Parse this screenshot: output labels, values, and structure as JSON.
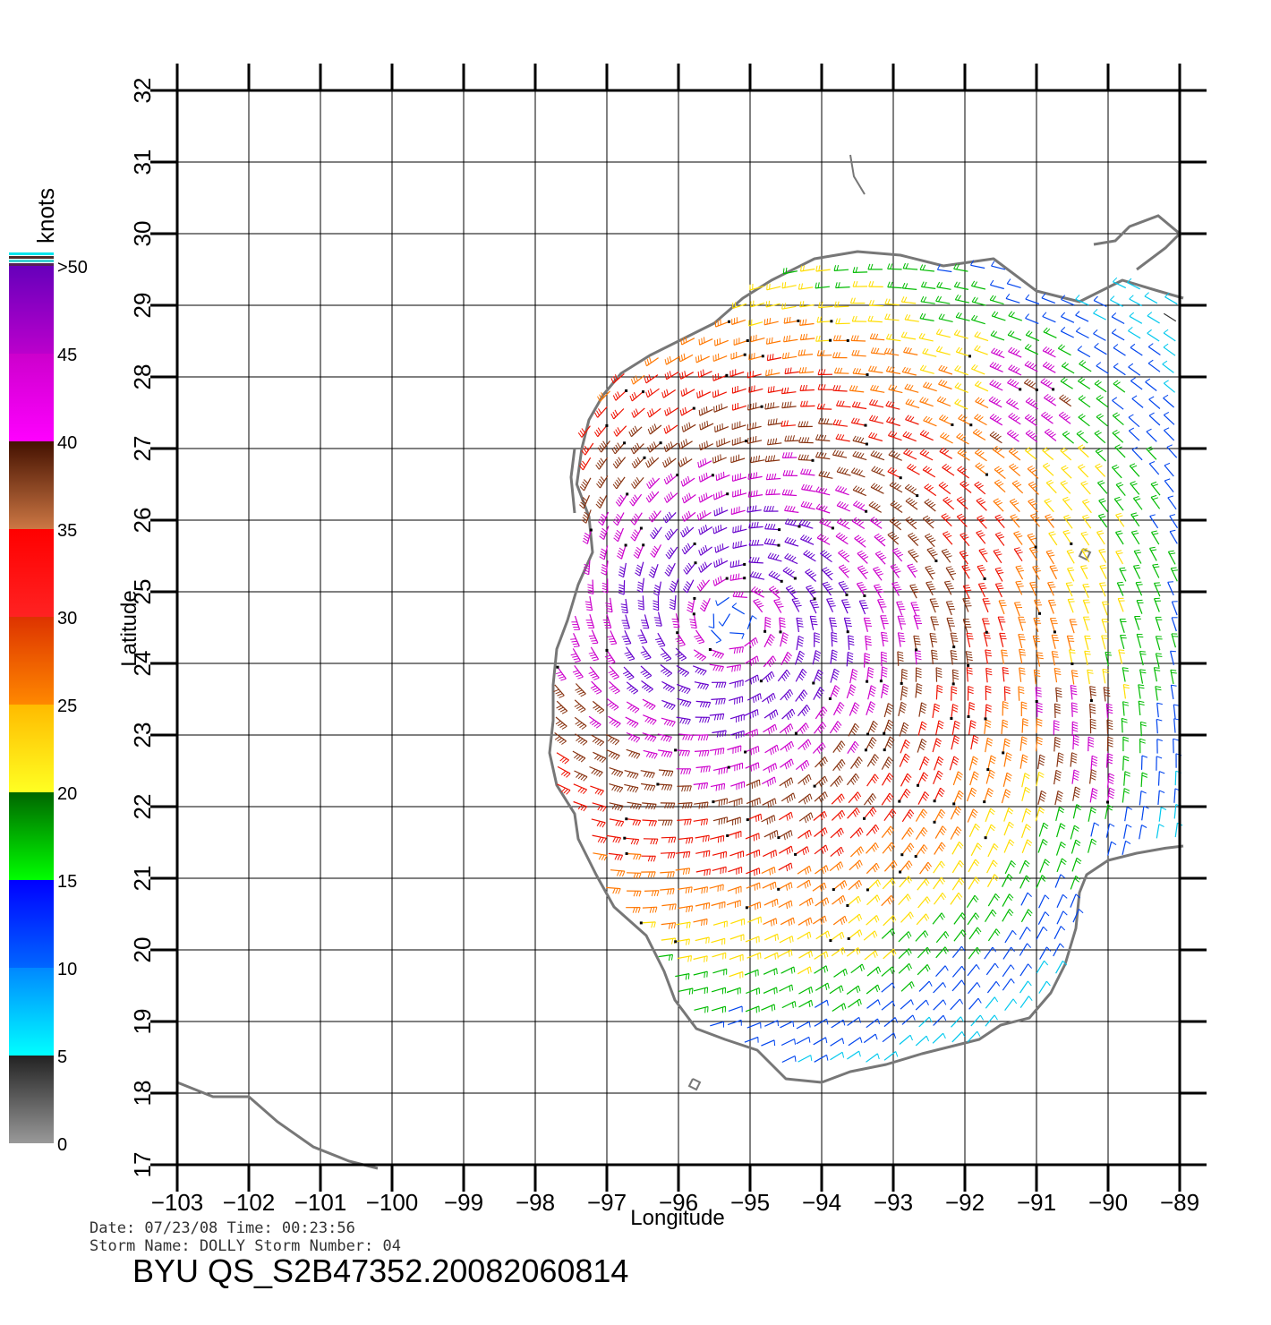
{
  "map": {
    "lon_range": [
      -103,
      -89
    ],
    "lat_range": [
      17,
      32
    ],
    "lon_ticks": [
      "−103",
      "−102",
      "−101",
      "−100",
      "−99",
      "−98",
      "−97",
      "−96",
      "−95",
      "−94",
      "−93",
      "−92",
      "−91",
      "−90",
      "−89"
    ],
    "lat_ticks": [
      "17",
      "18",
      "19",
      "20",
      "21",
      "22",
      "23",
      "24",
      "25",
      "26",
      "27",
      "28",
      "29",
      "30",
      "31",
      "32"
    ],
    "xlabel": "Longitude",
    "ylabel": "Latitude",
    "grid": true,
    "storm_center": {
      "lon": -95.2,
      "lat": 24.6
    },
    "coast_color": "#777777"
  },
  "colorbar": {
    "title": "knots",
    "labels": [
      "0",
      "5",
      "10",
      "15",
      "20",
      "25",
      "30",
      "35",
      "40",
      "45",
      ">50"
    ],
    "bands": [
      {
        "from": 0,
        "to": 5,
        "top": "#222222",
        "bottom": "#999999"
      },
      {
        "from": 5,
        "to": 10,
        "top": "#0088ff",
        "bottom": "#00ffff"
      },
      {
        "from": 10,
        "to": 15,
        "top": "#0000ff",
        "bottom": "#0066ff"
      },
      {
        "from": 15,
        "to": 20,
        "top": "#006600",
        "bottom": "#00ff00"
      },
      {
        "from": 20,
        "to": 25,
        "top": "#ffbb00",
        "bottom": "#ffff22"
      },
      {
        "from": 25,
        "to": 30,
        "top": "#dd3300",
        "bottom": "#ff8800"
      },
      {
        "from": 30,
        "to": 35,
        "top": "#ff0000",
        "bottom": "#ff2222"
      },
      {
        "from": 35,
        "to": 40,
        "top": "#441100",
        "bottom": "#cc7744"
      },
      {
        "from": 40,
        "to": 45,
        "top": "#cc00cc",
        "bottom": "#ff00ff"
      },
      {
        "from": 45,
        "to": 50,
        "top": "#6600bb",
        "bottom": "#bb00cc"
      }
    ]
  },
  "footer": {
    "date_line": "Date: 07/23/08   Time: 00:23:56",
    "storm_line": "Storm  Name: DOLLY    Storm  Number: 04",
    "product": "BYU  QS_S2B47352.20082060814"
  }
}
